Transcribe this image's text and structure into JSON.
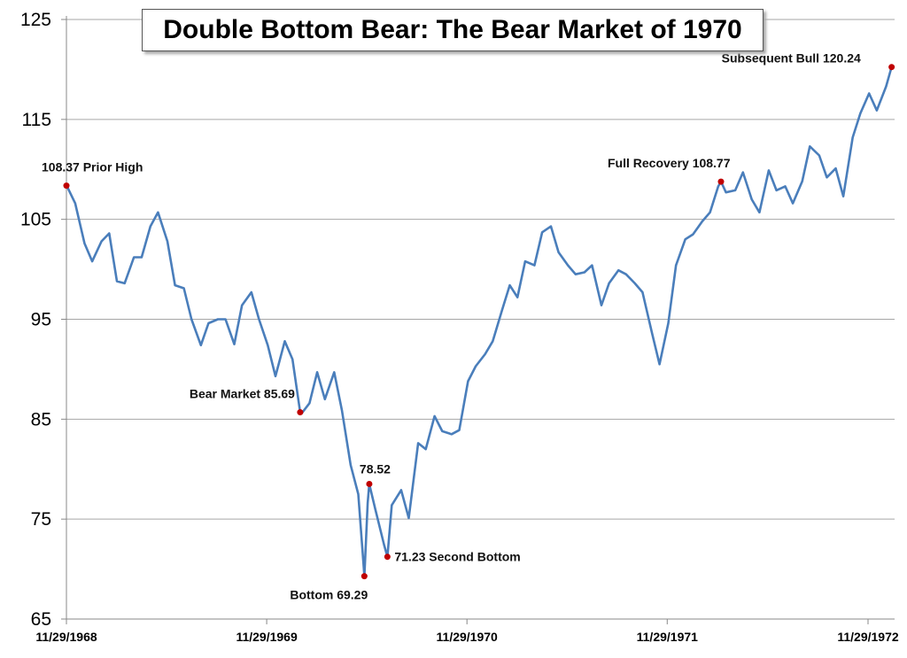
{
  "chart_data": {
    "type": "line",
    "title": "Double Bottom Bear: The Bear Market of 1970",
    "xlabel": "",
    "ylabel": "",
    "ylim": [
      65,
      125
    ],
    "yticks": [
      65,
      75,
      85,
      95,
      105,
      115,
      125
    ],
    "xticks": [
      "1968-11-29",
      "1969-11-29",
      "1970-11-29",
      "1971-11-29",
      "1972-11-29"
    ],
    "xtick_labels": [
      "11/29/1968",
      "11/29/1969",
      "11/29/1970",
      "11/29/1971",
      "11/29/1972"
    ],
    "grid": "horizontal",
    "colors": {
      "line": "#4a7ebb",
      "marker": "#c00000",
      "grid": "#a6a6a6"
    },
    "series": [
      {
        "points": [
          [
            "1968-11-29",
            108.37
          ],
          [
            "1968-12-01",
            108.2
          ],
          [
            "1968-12-15",
            106.6
          ],
          [
            "1969-01-01",
            102.6
          ],
          [
            "1969-01-15",
            100.8
          ],
          [
            "1969-02-01",
            102.8
          ],
          [
            "1969-02-15",
            103.6
          ],
          [
            "1969-03-01",
            98.8
          ],
          [
            "1969-03-15",
            98.6
          ],
          [
            "1969-04-01",
            101.2
          ],
          [
            "1969-04-15",
            101.2
          ],
          [
            "1969-05-01",
            104.3
          ],
          [
            "1969-05-15",
            105.7
          ],
          [
            "1969-06-01",
            102.8
          ],
          [
            "1969-06-15",
            98.4
          ],
          [
            "1969-07-01",
            98.1
          ],
          [
            "1969-07-15",
            95.0
          ],
          [
            "1969-08-01",
            92.4
          ],
          [
            "1969-08-15",
            94.6
          ],
          [
            "1969-09-01",
            95.0
          ],
          [
            "1969-09-15",
            95.0
          ],
          [
            "1969-10-01",
            92.5
          ],
          [
            "1969-10-15",
            96.4
          ],
          [
            "1969-11-01",
            97.7
          ],
          [
            "1969-11-15",
            95.0
          ],
          [
            "1969-12-01",
            92.4
          ],
          [
            "1969-12-15",
            89.3
          ],
          [
            "1970-01-01",
            92.8
          ],
          [
            "1970-01-15",
            91.0
          ],
          [
            "1970-01-29",
            85.69
          ],
          [
            "1970-02-01",
            85.6
          ],
          [
            "1970-02-15",
            86.6
          ],
          [
            "1970-03-01",
            89.7
          ],
          [
            "1970-03-15",
            87.0
          ],
          [
            "1970-04-01",
            89.7
          ],
          [
            "1970-04-15",
            85.9
          ],
          [
            "1970-05-01",
            80.4
          ],
          [
            "1970-05-15",
            77.5
          ],
          [
            "1970-05-26",
            69.29
          ],
          [
            "1970-06-01",
            76.6
          ],
          [
            "1970-06-04",
            78.52
          ],
          [
            "1970-06-15",
            76.0
          ],
          [
            "1970-07-01",
            72.4
          ],
          [
            "1970-07-07",
            71.23
          ],
          [
            "1970-07-15",
            76.4
          ],
          [
            "1970-08-01",
            77.9
          ],
          [
            "1970-08-15",
            75.1
          ],
          [
            "1970-09-01",
            82.6
          ],
          [
            "1970-09-15",
            82.0
          ],
          [
            "1970-10-01",
            85.3
          ],
          [
            "1970-10-15",
            83.8
          ],
          [
            "1970-11-01",
            83.5
          ],
          [
            "1970-11-15",
            83.9
          ],
          [
            "1970-12-01",
            88.8
          ],
          [
            "1970-12-15",
            90.3
          ],
          [
            "1971-01-01",
            91.5
          ],
          [
            "1971-01-15",
            92.8
          ],
          [
            "1971-02-01",
            95.9
          ],
          [
            "1971-02-15",
            98.4
          ],
          [
            "1971-03-01",
            97.2
          ],
          [
            "1971-03-15",
            100.8
          ],
          [
            "1971-04-01",
            100.4
          ],
          [
            "1971-04-15",
            103.7
          ],
          [
            "1971-05-01",
            104.3
          ],
          [
            "1971-05-15",
            101.7
          ],
          [
            "1971-06-01",
            100.4
          ],
          [
            "1971-06-15",
            99.5
          ],
          [
            "1971-07-01",
            99.7
          ],
          [
            "1971-07-15",
            100.4
          ],
          [
            "1971-08-01",
            96.4
          ],
          [
            "1971-08-15",
            98.6
          ],
          [
            "1971-09-01",
            99.9
          ],
          [
            "1971-09-15",
            99.5
          ],
          [
            "1971-10-01",
            98.6
          ],
          [
            "1971-10-15",
            97.7
          ],
          [
            "1971-11-01",
            93.7
          ],
          [
            "1971-11-15",
            90.5
          ],
          [
            "1971-12-01",
            94.6
          ],
          [
            "1971-12-15",
            100.4
          ],
          [
            "1972-01-01",
            103.0
          ],
          [
            "1972-01-15",
            103.5
          ],
          [
            "1972-02-01",
            104.8
          ],
          [
            "1972-02-15",
            105.7
          ],
          [
            "1972-03-01",
            108.3
          ],
          [
            "1972-03-06",
            108.77
          ],
          [
            "1972-03-15",
            107.7
          ],
          [
            "1972-04-01",
            107.9
          ],
          [
            "1972-04-15",
            109.7
          ],
          [
            "1972-05-01",
            107.0
          ],
          [
            "1972-05-15",
            105.7
          ],
          [
            "1972-06-01",
            109.9
          ],
          [
            "1972-06-15",
            107.9
          ],
          [
            "1972-07-01",
            108.3
          ],
          [
            "1972-07-15",
            106.6
          ],
          [
            "1972-08-01",
            108.8
          ],
          [
            "1972-08-15",
            112.3
          ],
          [
            "1972-09-01",
            111.4
          ],
          [
            "1972-09-15",
            109.2
          ],
          [
            "1972-10-01",
            110.1
          ],
          [
            "1972-10-15",
            107.3
          ],
          [
            "1972-11-01",
            113.2
          ],
          [
            "1972-11-15",
            115.6
          ],
          [
            "1972-12-01",
            117.6
          ],
          [
            "1972-12-15",
            115.9
          ],
          [
            "1973-01-01",
            118.3
          ],
          [
            "1973-01-11",
            120.24
          ]
        ]
      }
    ],
    "annotations": [
      {
        "date": "1968-11-29",
        "value": 108.37,
        "label": "108.37 Prior High"
      },
      {
        "date": "1970-01-29",
        "value": 85.69,
        "label": "Bear Market  85.69"
      },
      {
        "date": "1970-05-26",
        "value": 69.29,
        "label": "Bottom 69.29"
      },
      {
        "date": "1970-06-04",
        "value": 78.52,
        "label": "78.52"
      },
      {
        "date": "1970-07-07",
        "value": 71.23,
        "label": "71.23  Second Bottom"
      },
      {
        "date": "1972-03-06",
        "value": 108.77,
        "label": "Full Recovery 108.77"
      },
      {
        "date": "1973-01-11",
        "value": 120.24,
        "label": "Subsequent Bull  120.24"
      }
    ]
  }
}
